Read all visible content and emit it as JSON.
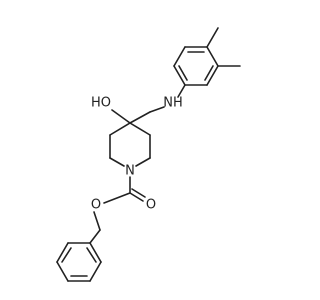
{
  "molecule": {
    "atom_labels": [
      "NH",
      "HO",
      "N",
      "O",
      "O"
    ]
  }
}
